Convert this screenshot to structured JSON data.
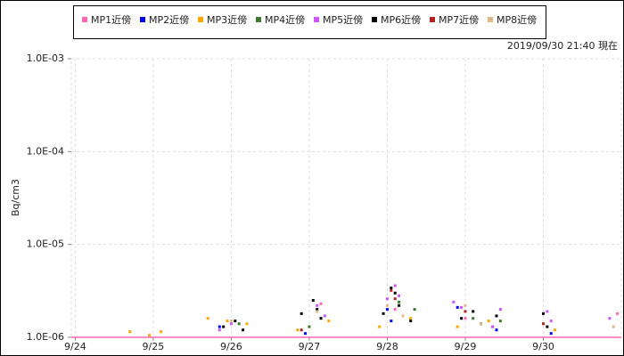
{
  "chart_data": {
    "type": "scatter",
    "annotation": "2019/09/30 21:40 現在",
    "y_label": "Bq/cm3",
    "log_y": true,
    "grid": true,
    "legend": "top",
    "xlim": [
      23.95,
      31.0
    ],
    "xticks": [
      {
        "value": 24,
        "label": "9/24"
      },
      {
        "value": 25,
        "label": "9/25"
      },
      {
        "value": 26,
        "label": "9/26"
      },
      {
        "value": 27,
        "label": "9/27"
      },
      {
        "value": 28,
        "label": "9/28"
      },
      {
        "value": 29,
        "label": "9/29"
      },
      {
        "value": 30,
        "label": "9/30"
      }
    ],
    "ylim": [
      1e-06,
      0.001
    ],
    "yticks": [
      {
        "value": 0.001,
        "label": "1.0E-03"
      },
      {
        "value": 0.0001,
        "label": "1.0E-04"
      },
      {
        "value": 1e-05,
        "label": "1.0E-05"
      },
      {
        "value": 1e-06,
        "label": "1.0E-06"
      }
    ],
    "series": [
      {
        "name": "MP1近傍",
        "color": "#ff66b3",
        "x": [
          27.15,
          28.1,
          29.0,
          29.35,
          30.95
        ],
        "values": [
          2.3e-06,
          2e-06,
          1.6e-06,
          1.3e-06,
          1.8e-06
        ]
      },
      {
        "name": "MP2近傍",
        "color": "#0000ff",
        "x": [
          25.85,
          26.95,
          28.0,
          28.05,
          28.9,
          29.4,
          30.1
        ],
        "values": [
          1.3e-06,
          1.1e-06,
          2e-06,
          1.5e-06,
          2.1e-06,
          1.2e-06,
          1.1e-06
        ]
      },
      {
        "name": "MP3近傍",
        "color": "#ffa500",
        "x": [
          24.7,
          24.95,
          25.1,
          25.7,
          25.95,
          26.2,
          26.85,
          27.25,
          27.9,
          28.3,
          28.9,
          29.3,
          30.15
        ],
        "values": [
          1.15e-06,
          1.05e-06,
          1.15e-06,
          1.6e-06,
          1.5e-06,
          1.4e-06,
          1.2e-06,
          1.5e-06,
          1.3e-06,
          1.6e-06,
          1.3e-06,
          1.5e-06,
          1.2e-06
        ]
      },
      {
        "name": "MP4近傍",
        "color": "#3c7a2e",
        "x": [
          26.1,
          27.0,
          28.15,
          28.35,
          29.1,
          29.45
        ],
        "values": [
          1.4e-06,
          1.3e-06,
          2.4e-06,
          2e-06,
          1.6e-06,
          1.5e-06
        ]
      },
      {
        "name": "MP5近傍",
        "color": "#cc55ff",
        "x": [
          25.85,
          26.0,
          27.1,
          27.2,
          28.0,
          28.1,
          28.15,
          28.85,
          28.95,
          29.35,
          29.45,
          30.05,
          30.1,
          30.85
        ],
        "values": [
          1.2e-06,
          1.4e-06,
          2.2e-06,
          1.7e-06,
          2.6e-06,
          3.6e-06,
          2.8e-06,
          2.4e-06,
          2.1e-06,
          1.3e-06,
          2e-06,
          1.9e-06,
          1.5e-06,
          1.6e-06
        ]
      },
      {
        "name": "MP6近傍",
        "color": "#000000",
        "x": [
          25.9,
          26.05,
          26.15,
          26.9,
          27.05,
          27.1,
          27.15,
          27.95,
          28.05,
          28.1,
          28.15,
          28.3,
          28.95,
          29.1,
          29.2,
          29.4,
          30.0,
          30.05
        ],
        "values": [
          1.3e-06,
          1.5e-06,
          1.2e-06,
          1.8e-06,
          2.5e-06,
          2e-06,
          1.6e-06,
          1.8e-06,
          3.4e-06,
          3e-06,
          2.2e-06,
          1.5e-06,
          1.6e-06,
          1.9e-06,
          1.4e-06,
          1.7e-06,
          1.8e-06,
          1.3e-06
        ]
      },
      {
        "name": "MP7近傍",
        "color": "#b22222",
        "x": [
          26.9,
          28.05,
          28.1,
          29.0,
          30.0
        ],
        "values": [
          1.2e-06,
          3.2e-06,
          2.6e-06,
          1.9e-06,
          1.4e-06
        ]
      },
      {
        "name": "MP8近傍",
        "color": "#deb887",
        "x": [
          26.0,
          27.1,
          28.0,
          28.2,
          29.0,
          29.2,
          30.9
        ],
        "values": [
          1.5e-06,
          1.9e-06,
          2.2e-06,
          1.7e-06,
          2.2e-06,
          1.4e-06,
          1.3e-06
        ]
      }
    ]
  }
}
